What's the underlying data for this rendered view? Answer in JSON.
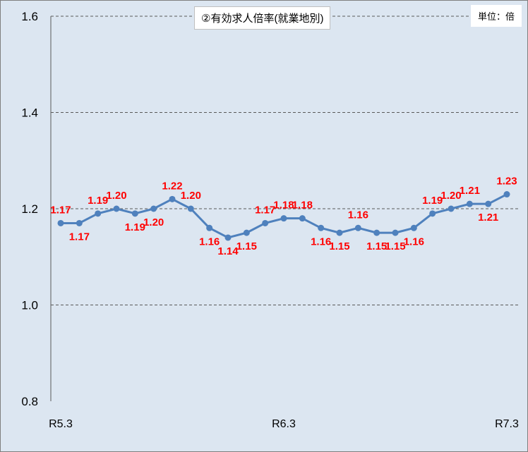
{
  "chart_data": {
    "type": "line",
    "title": "②有効求人倍率(就業地別)",
    "unit_label": "単位：倍",
    "x": [
      "R5.3",
      "",
      "",
      "",
      "",
      "",
      "",
      "",
      "",
      "",
      "",
      "",
      "R6.3",
      "",
      "",
      "",
      "",
      "",
      "",
      "",
      "",
      "",
      "",
      "",
      "R7.3"
    ],
    "x_tick_labels": [
      "R5.3",
      "R6.3",
      "R7.3"
    ],
    "series": [
      {
        "values": [
          1.17,
          1.17,
          1.19,
          1.2,
          1.19,
          1.2,
          1.22,
          1.2,
          1.16,
          1.14,
          1.15,
          1.17,
          1.18,
          1.18,
          1.16,
          1.15,
          1.16,
          1.15,
          1.15,
          1.16,
          1.19,
          1.2,
          1.21,
          1.21,
          1.23
        ],
        "data_labels": [
          "1.17",
          "1.17",
          "1.19",
          "1.20",
          "1.19",
          "1.20",
          "1.22",
          "1.20",
          "1.16",
          "1.14",
          "1.15",
          "1.17",
          "1.18",
          "1.18",
          "1.16",
          "1.15",
          "1.16",
          "1.15",
          "1.15",
          "1.16",
          "1.19",
          "1.20",
          "1.21",
          "1.21",
          "1.23"
        ]
      }
    ],
    "ylim": [
      0.8,
      1.6
    ],
    "y_ticks": [
      "0.8",
      "1.0",
      "1.2",
      "1.4",
      "1.6"
    ],
    "y_tick_values": [
      0.8,
      1.0,
      1.2,
      1.4,
      1.6
    ],
    "grid": true,
    "colors": {
      "line": "#4f81bd",
      "label": "#ff0000",
      "grid": "#595959",
      "background": "#dce6f1"
    }
  }
}
